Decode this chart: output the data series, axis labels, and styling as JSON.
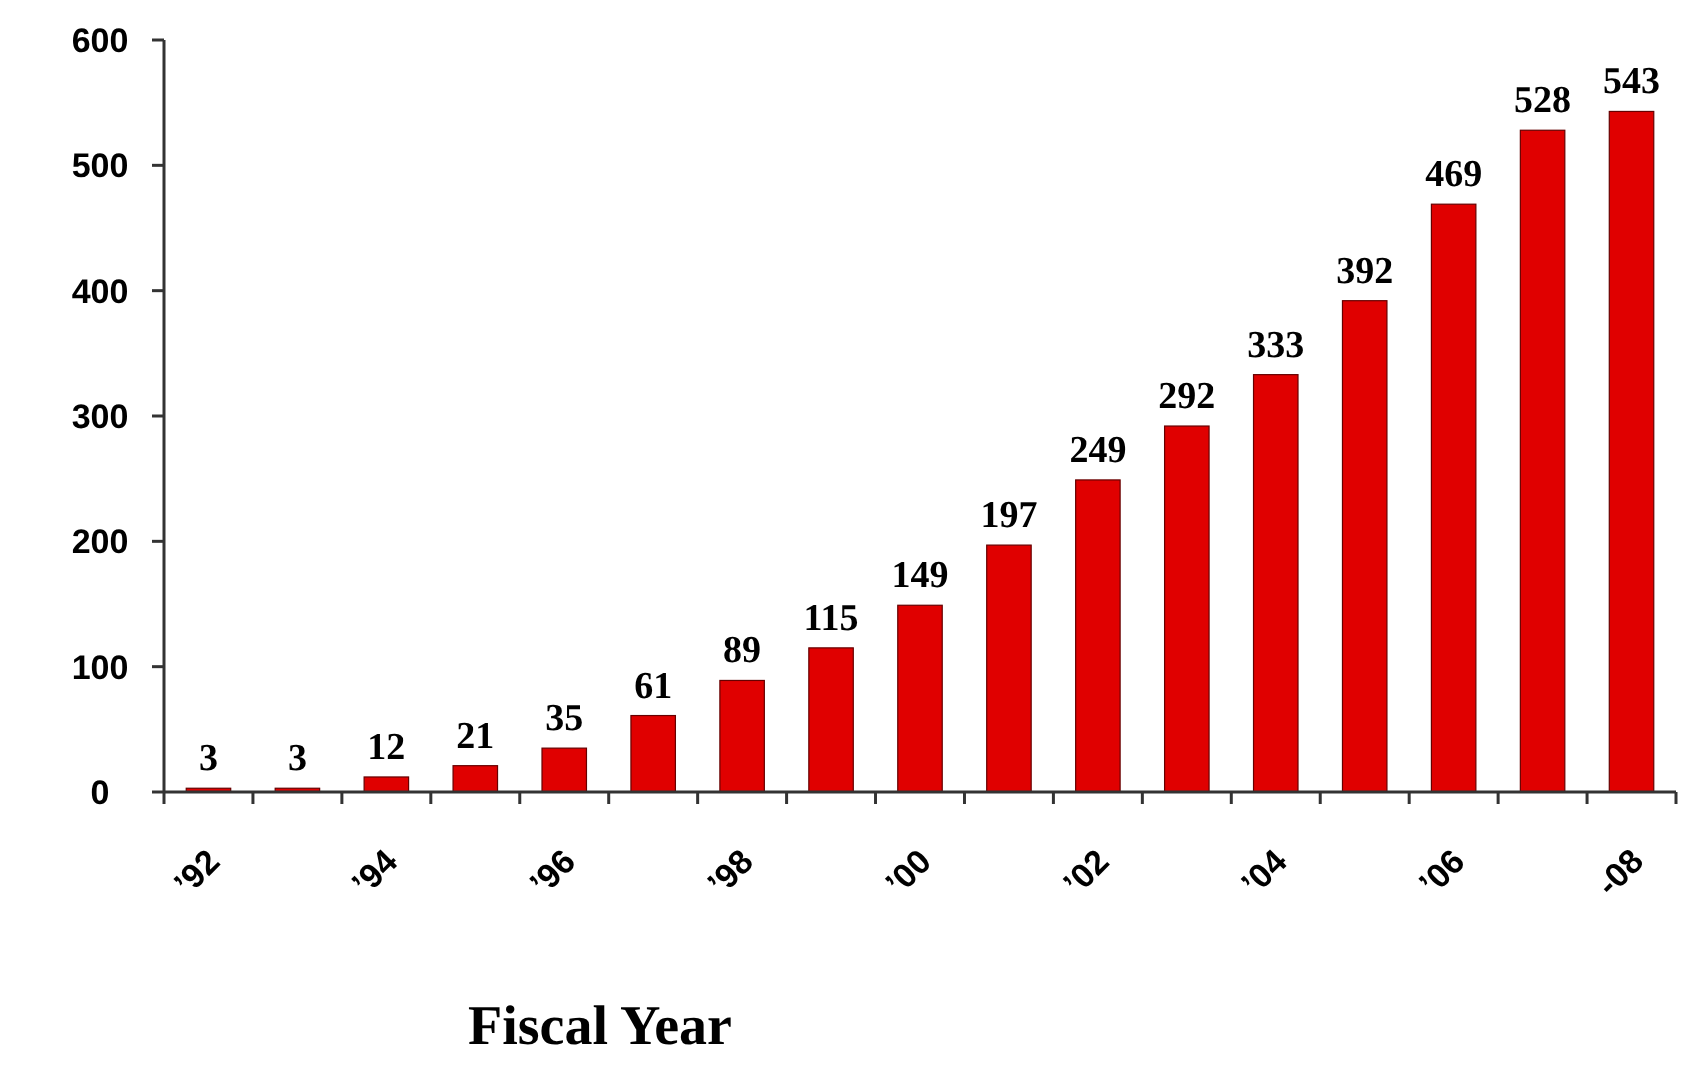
{
  "chart_data": {
    "type": "bar",
    "xlabel": "Fiscal Year",
    "categories": [
      "’92",
      null,
      "’94",
      null,
      "’96",
      null,
      "’98",
      null,
      "’00",
      null,
      "’02",
      null,
      "’04",
      null,
      "’06",
      null,
      "-08"
    ],
    "values": [
      3,
      3,
      12,
      21,
      35,
      61,
      89,
      115,
      149,
      197,
      249,
      292,
      333,
      392,
      469,
      528,
      543
    ],
    "color": "#e00000",
    "ylim": [
      0,
      600
    ],
    "yticks": [
      0,
      100,
      200,
      300,
      400,
      500,
      600
    ],
    "grid": false,
    "data_labels": true
  }
}
